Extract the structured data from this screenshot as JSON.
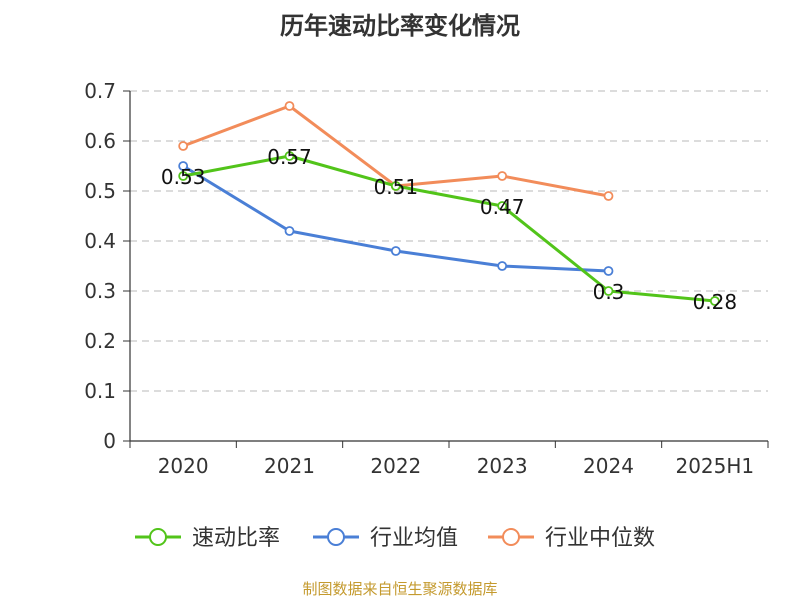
{
  "chart_data": {
    "type": "line",
    "title": "历年速动比率变化情况",
    "categories": [
      "2020",
      "2021",
      "2022",
      "2023",
      "2024",
      "2025H1"
    ],
    "y_ticks": [
      "0",
      "0.1",
      "0.2",
      "0.3",
      "0.4",
      "0.5",
      "0.6",
      "0.7"
    ],
    "ylim": [
      0,
      0.7
    ],
    "grid": true,
    "legend_position": "bottom",
    "series": [
      {
        "name": "速动比率",
        "color": "#52c41a",
        "values": [
          0.53,
          0.57,
          0.51,
          0.47,
          0.3,
          0.28
        ],
        "labels": [
          "0.53",
          "0.57",
          "0.51",
          "0.47",
          "0.3",
          "0.28"
        ]
      },
      {
        "name": "行业均值",
        "color": "#4a7fd6",
        "values": [
          0.55,
          0.42,
          0.38,
          0.35,
          0.34,
          null
        ]
      },
      {
        "name": "行业中位数",
        "color": "#f28c5a",
        "values": [
          0.59,
          0.67,
          0.51,
          0.53,
          0.49,
          null
        ]
      }
    ]
  },
  "footer": {
    "source": "制图数据来自恒生聚源数据库"
  }
}
